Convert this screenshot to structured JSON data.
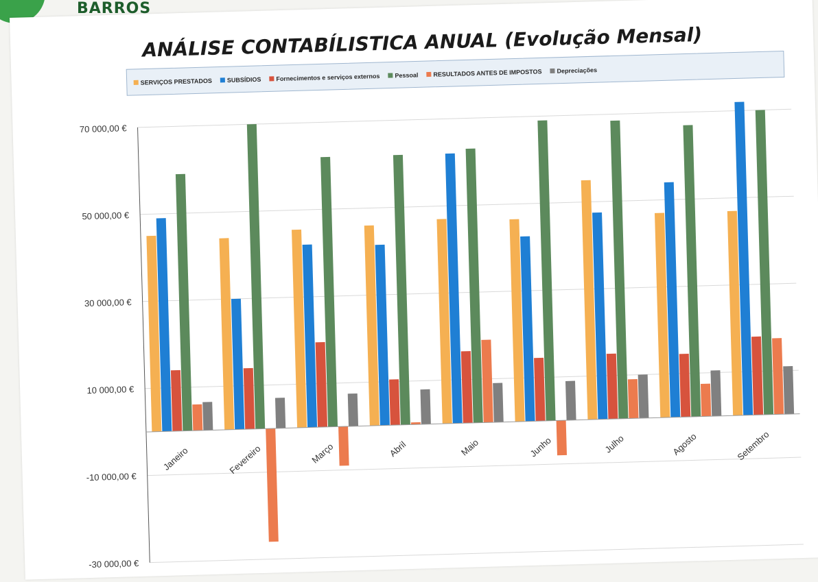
{
  "header": {
    "brand": "BARROS"
  },
  "chart_data": {
    "type": "bar",
    "title": "ANÁLISE CONTABÍLISTICA ANUAL (Evolução Mensal)",
    "xlabel": "",
    "ylabel": "",
    "categories": [
      "Janeiro",
      "Fevereiro",
      "Março",
      "Abril",
      "Maio",
      "Junho",
      "Julho",
      "Agosto",
      "Setembro"
    ],
    "ylim": [
      -30000,
      70000
    ],
    "yticks": [
      -30000,
      -10000,
      10000,
      30000,
      50000,
      70000
    ],
    "ytick_labels": [
      "-30 000,00 €",
      "-10 000,00 €",
      "10 000,00 €",
      "30 000,00 €",
      "50 000,00 €",
      "70 000,00 €"
    ],
    "grid": true,
    "legend_position": "top",
    "series": [
      {
        "name": "SERVIÇOS PRESTADOS",
        "color": "#f5b052",
        "values": [
          45000,
          44000,
          45500,
          46000,
          47000,
          46500,
          55000,
          47000,
          47000
        ]
      },
      {
        "name": "SUBSÍDIOS",
        "color": "#1f7fd4",
        "values": [
          49000,
          30000,
          42000,
          41500,
          62000,
          42500,
          47500,
          54000,
          72000
        ]
      },
      {
        "name": "Fornecimentos e serviços externos",
        "color": "#d7533d",
        "values": [
          14000,
          14000,
          19500,
          10500,
          16500,
          14500,
          15000,
          14500,
          18000
        ]
      },
      {
        "name": "Pessoal",
        "color": "#5c8a5c",
        "values": [
          59000,
          70000,
          62000,
          62000,
          63000,
          69000,
          68500,
          67000,
          70000
        ]
      },
      {
        "name": "RESULTADOS ANTES DE IMPOSTOS",
        "color": "#ec7b4e",
        "values": [
          6000,
          -26000,
          -9000,
          500,
          19000,
          -8000,
          9000,
          7500,
          17500
        ]
      },
      {
        "name": "Depreciações",
        "color": "#808080",
        "values": [
          6500,
          7000,
          7500,
          8000,
          9000,
          9000,
          10000,
          10500,
          11000
        ]
      }
    ]
  }
}
